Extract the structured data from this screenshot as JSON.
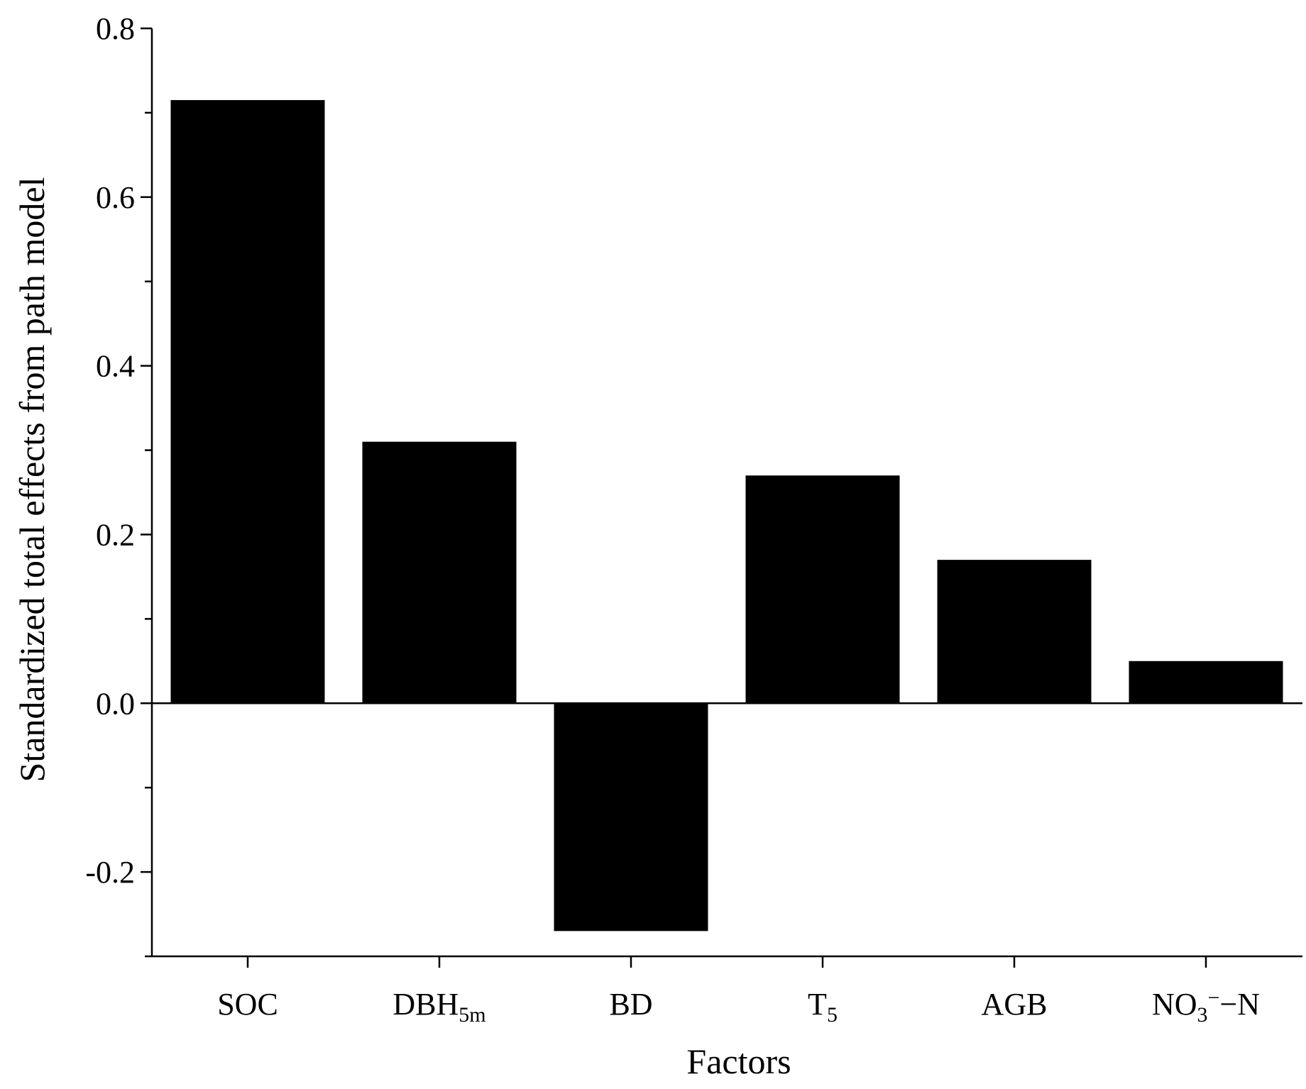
{
  "chart_data": {
    "type": "bar",
    "title": "",
    "xlabel": "Factors",
    "ylabel": "Standardized total effects from path model",
    "categories": [
      {
        "base": "SOC",
        "sub": "",
        "sup": "",
        "suffix": ""
      },
      {
        "base": "DBH",
        "sub": "5m",
        "sup": "",
        "suffix": ""
      },
      {
        "base": "BD",
        "sub": "",
        "sup": "",
        "suffix": ""
      },
      {
        "base": "T",
        "sub": "5",
        "sup": "",
        "suffix": ""
      },
      {
        "base": "AGB",
        "sub": "",
        "sup": "",
        "suffix": ""
      },
      {
        "base": "NO",
        "sub": "3",
        "sup": "−",
        "suffix": "−N"
      }
    ],
    "values": [
      0.715,
      0.31,
      -0.27,
      0.27,
      0.17,
      0.05
    ],
    "ylim": [
      -0.3,
      0.8
    ],
    "yticks": [
      "-0.2",
      "0.0",
      "0.2",
      "0.4",
      "0.6",
      "0.8"
    ],
    "grid": false,
    "bar_color": "#000000"
  }
}
